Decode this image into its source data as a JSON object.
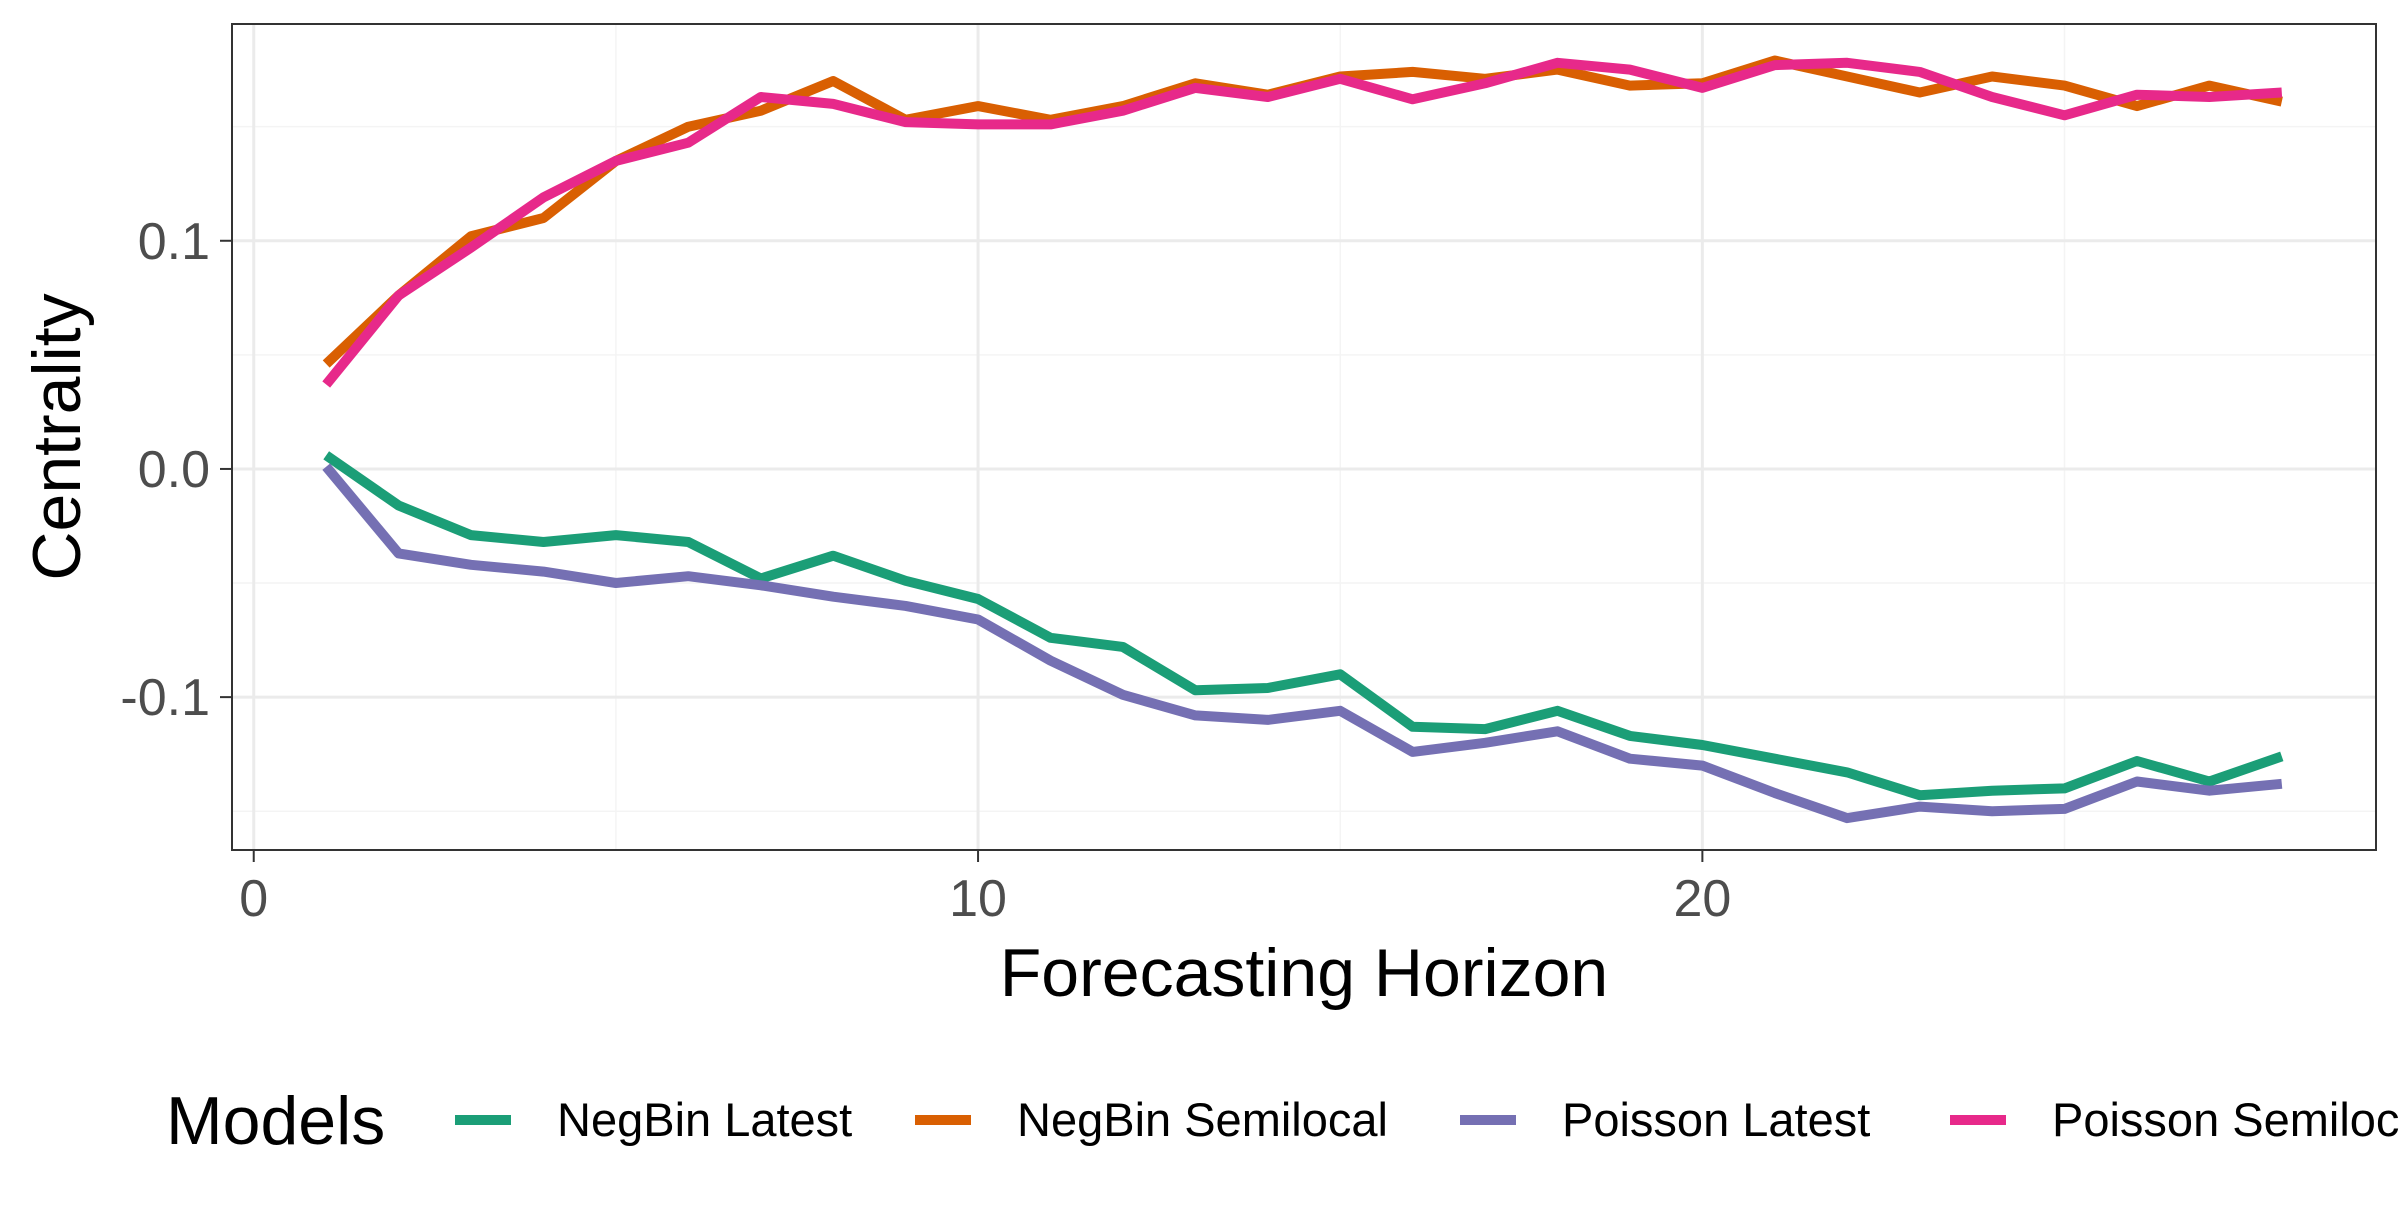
{
  "chart_data": {
    "type": "line",
    "xlabel": "Forecasting Horizon",
    "ylabel": "Centrality",
    "xlim": [
      -0.3,
      29.3
    ],
    "ylim": [
      -0.167,
      0.195
    ],
    "x_ticks": [
      0,
      10,
      20
    ],
    "x_tick_labels": [
      "0",
      "10",
      "20"
    ],
    "x_minor_ticks": [
      5,
      15,
      25
    ],
    "y_ticks": [
      -0.1,
      0.0,
      0.1
    ],
    "y_tick_labels": [
      "-0.1",
      "0.0",
      "0.1"
    ],
    "y_minor_ticks": [
      -0.15,
      -0.05,
      0.05,
      0.15
    ],
    "grid": true,
    "legend_title": "Models",
    "legend_position": "bottom",
    "x": [
      1,
      2,
      3,
      4,
      5,
      6,
      7,
      8,
      9,
      10,
      11,
      12,
      13,
      14,
      15,
      16,
      17,
      18,
      19,
      20,
      21,
      22,
      23,
      24,
      25,
      26,
      27,
      28
    ],
    "series": [
      {
        "name": "NegBin Latest",
        "color": "#1b9e77",
        "values": [
          0.006,
          -0.016,
          -0.029,
          -0.032,
          -0.029,
          -0.032,
          -0.048,
          -0.038,
          -0.049,
          -0.057,
          -0.074,
          -0.078,
          -0.097,
          -0.096,
          -0.09,
          -0.113,
          -0.114,
          -0.106,
          -0.117,
          -0.121,
          -0.127,
          -0.133,
          -0.143,
          -0.141,
          -0.14,
          -0.128,
          -0.137,
          -0.126
        ]
      },
      {
        "name": "NegBin Semilocal",
        "color": "#d95f02",
        "values": [
          0.046,
          0.076,
          0.102,
          0.11,
          0.135,
          0.15,
          0.157,
          0.17,
          0.153,
          0.159,
          0.153,
          0.159,
          0.169,
          0.164,
          0.172,
          0.174,
          0.171,
          0.175,
          0.168,
          0.169,
          0.179,
          0.172,
          0.165,
          0.172,
          0.168,
          0.159,
          0.168,
          0.161
        ]
      },
      {
        "name": "Poisson Latest",
        "color": "#7570b3",
        "values": [
          0.001,
          -0.037,
          -0.042,
          -0.045,
          -0.05,
          -0.047,
          -0.051,
          -0.056,
          -0.06,
          -0.066,
          -0.084,
          -0.099,
          -0.108,
          -0.11,
          -0.106,
          -0.124,
          -0.12,
          -0.115,
          -0.127,
          -0.13,
          -0.142,
          -0.153,
          -0.148,
          -0.15,
          -0.149,
          -0.137,
          -0.141,
          -0.138
        ]
      },
      {
        "name": "Poisson Semilocal",
        "color": "#e7298a",
        "values": [
          0.037,
          0.076,
          0.097,
          0.119,
          0.135,
          0.143,
          0.163,
          0.16,
          0.152,
          0.151,
          0.151,
          0.157,
          0.167,
          0.163,
          0.171,
          0.162,
          0.169,
          0.178,
          0.175,
          0.167,
          0.177,
          0.178,
          0.174,
          0.163,
          0.155,
          0.164,
          0.163,
          0.165
        ]
      }
    ]
  }
}
